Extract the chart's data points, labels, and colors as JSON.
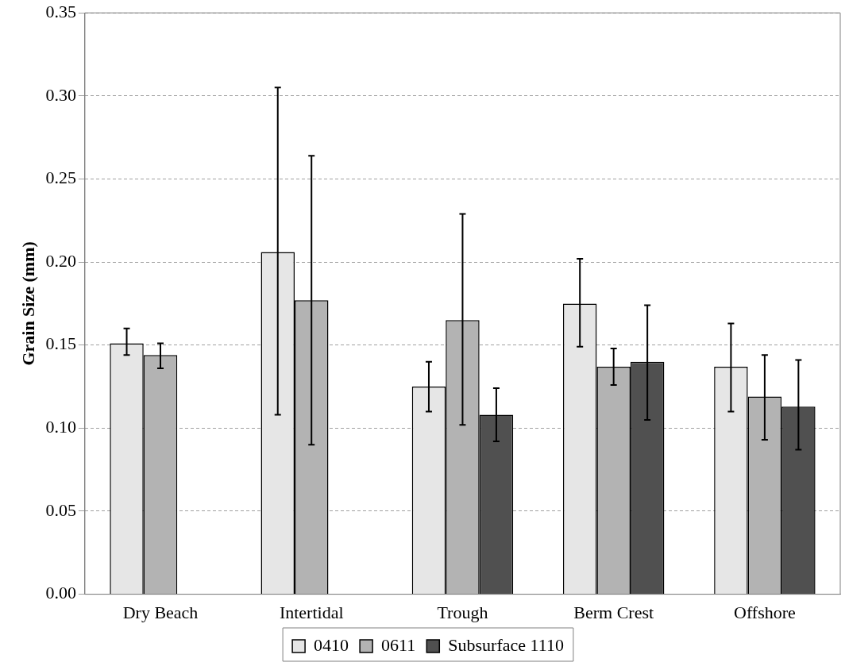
{
  "chart_data": {
    "type": "bar",
    "ylabel": "Grain Size (mm)",
    "categories": [
      "Dry Beach",
      "Intertidal",
      "Trough",
      "Berm Crest",
      "Offshore"
    ],
    "series": [
      {
        "name": "0410",
        "color": "#e6e6e6",
        "values": [
          0.151,
          0.206,
          0.125,
          0.175,
          0.137
        ],
        "errors": [
          [
            0.144,
            0.16
          ],
          [
            0.108,
            0.305
          ],
          [
            0.11,
            0.14
          ],
          [
            0.149,
            0.202
          ],
          [
            0.11,
            0.163
          ]
        ]
      },
      {
        "name": "0611",
        "color": "#b3b3b3",
        "values": [
          0.144,
          0.177,
          0.165,
          0.137,
          0.119
        ],
        "errors": [
          [
            0.136,
            0.151
          ],
          [
            0.09,
            0.264
          ],
          [
            0.102,
            0.229
          ],
          [
            0.126,
            0.148
          ],
          [
            0.093,
            0.144
          ]
        ]
      },
      {
        "name": "Subsurface 1110",
        "color": "#505050",
        "values": [
          0,
          0,
          0.108,
          0.14,
          0.113
        ],
        "errors": [
          null,
          null,
          [
            0.092,
            0.124
          ],
          [
            0.105,
            0.174
          ],
          [
            0.087,
            0.141
          ]
        ]
      }
    ],
    "ylim": [
      0,
      0.35
    ],
    "yticks": [
      {
        "value": 0,
        "label": "0.00"
      },
      {
        "value": 0.05,
        "label": "0.05"
      },
      {
        "value": 0.1,
        "label": "0.10"
      },
      {
        "value": 0.15,
        "label": "0.15"
      },
      {
        "value": 0.2,
        "label": "0.20"
      },
      {
        "value": 0.25,
        "label": "0.25"
      },
      {
        "value": 0.3,
        "label": "0.30"
      },
      {
        "value": 0.35,
        "label": "0.35"
      }
    ],
    "grid": "y",
    "legend": "bottom"
  }
}
